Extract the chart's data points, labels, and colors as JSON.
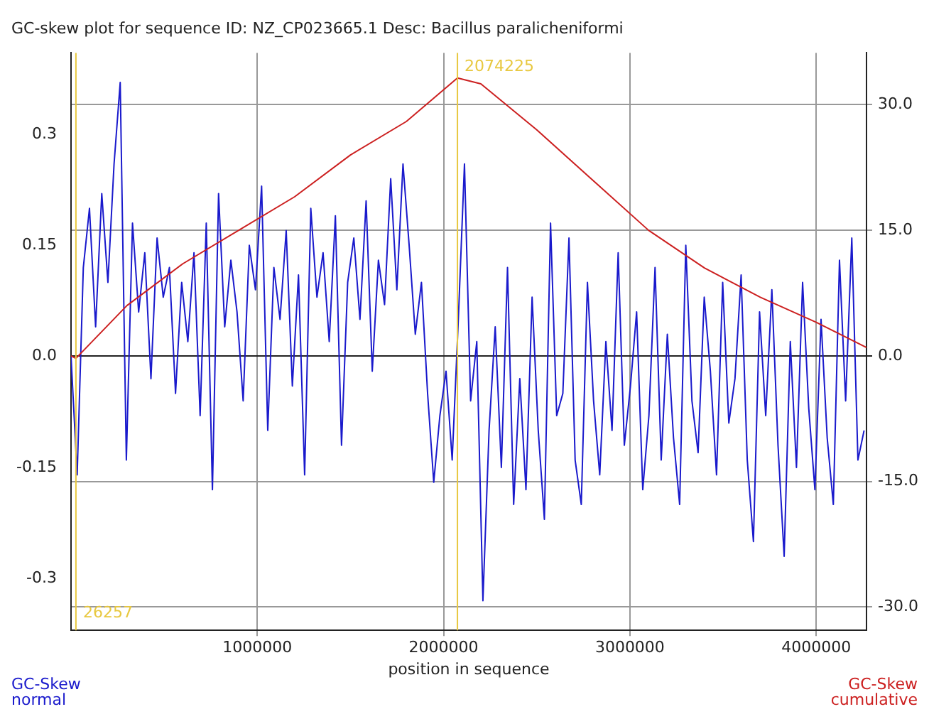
{
  "chart_data": {
    "type": "line",
    "title": "GC-skew plot for sequence ID: NZ_CP023665.1 Desc: Bacillus paralicheniformi",
    "xlabel": "position in sequence",
    "ylabel": "GC-Skew normal",
    "y2label": "GC-Skew cumulative",
    "xlim": [
      0,
      4270000
    ],
    "xticks": [
      1000000,
      2000000,
      3000000,
      4000000
    ],
    "ylim": [
      -0.37,
      0.41
    ],
    "yticks": [
      0.3,
      0.15,
      {
        "value": 0,
        "label": "0.0"
      },
      -0.15,
      -0.3
    ],
    "y2lim": [
      -32.8,
      36.2
    ],
    "y2ticks": [
      {
        "value": 30,
        "label": "30.0"
      },
      {
        "value": 15,
        "label": "15.0"
      },
      {
        "value": 0,
        "label": "0.0"
      },
      {
        "value": -15,
        "label": "-15.0"
      },
      {
        "value": -30,
        "label": "-30.0"
      }
    ],
    "grid": true,
    "legend": false,
    "marker": "none",
    "line_style": "solid",
    "ref_lines": [
      {
        "axis": "x",
        "value": 26257,
        "label": "26257",
        "color": "#e8c840"
      },
      {
        "axis": "x",
        "value": 2074225,
        "label": "2074225",
        "color": "#e8c840"
      }
    ],
    "series": [
      {
        "color": "#1a1acc",
        "x": [
          0,
          33000,
          66000,
          99000,
          132000,
          165000,
          198000,
          231000,
          264000,
          297000,
          330000,
          363000,
          396000,
          429000,
          462000,
          495000,
          528000,
          561000,
          594000,
          627000,
          660000,
          693000,
          726000,
          759000,
          792000,
          825000,
          858000,
          891000,
          924000,
          957000,
          990000,
          1023000,
          1056000,
          1089000,
          1122000,
          1155000,
          1188000,
          1221000,
          1254000,
          1287000,
          1320000,
          1353000,
          1386000,
          1419000,
          1452000,
          1485000,
          1518000,
          1551000,
          1584000,
          1617000,
          1650000,
          1683000,
          1716000,
          1749000,
          1782000,
          1815000,
          1848000,
          1881000,
          1914000,
          1947000,
          1980000,
          2013000,
          2046000,
          2079000,
          2112000,
          2145000,
          2178000,
          2211000,
          2244000,
          2277000,
          2310000,
          2343000,
          2376000,
          2409000,
          2442000,
          2475000,
          2508000,
          2541000,
          2574000,
          2607000,
          2640000,
          2673000,
          2706000,
          2739000,
          2772000,
          2805000,
          2838000,
          2871000,
          2904000,
          2937000,
          2970000,
          3003000,
          3036000,
          3069000,
          3102000,
          3135000,
          3168000,
          3201000,
          3234000,
          3267000,
          3300000,
          3333000,
          3366000,
          3399000,
          3432000,
          3465000,
          3498000,
          3531000,
          3564000,
          3597000,
          3630000,
          3663000,
          3696000,
          3729000,
          3762000,
          3795000,
          3828000,
          3861000,
          3894000,
          3927000,
          3960000,
          3993000,
          4026000,
          4059000,
          4092000,
          4125000,
          4158000,
          4191000,
          4224000,
          4257000
        ],
        "values": [
          0.0,
          -0.16,
          0.12,
          0.2,
          0.04,
          0.22,
          0.1,
          0.26,
          0.37,
          -0.14,
          0.18,
          0.06,
          0.14,
          -0.03,
          0.16,
          0.08,
          0.12,
          -0.05,
          0.1,
          0.02,
          0.14,
          -0.08,
          0.18,
          -0.18,
          0.22,
          0.04,
          0.13,
          0.06,
          -0.06,
          0.15,
          0.09,
          0.23,
          -0.1,
          0.12,
          0.05,
          0.17,
          -0.04,
          0.11,
          -0.16,
          0.2,
          0.08,
          0.14,
          0.02,
          0.19,
          -0.12,
          0.1,
          0.16,
          0.05,
          0.21,
          -0.02,
          0.13,
          0.07,
          0.24,
          0.09,
          0.26,
          0.15,
          0.03,
          0.1,
          -0.05,
          -0.17,
          -0.08,
          -0.02,
          -0.14,
          0.05,
          0.26,
          -0.06,
          0.02,
          -0.33,
          -0.1,
          0.04,
          -0.15,
          0.12,
          -0.2,
          -0.03,
          -0.18,
          0.08,
          -0.1,
          -0.22,
          0.18,
          -0.08,
          -0.05,
          0.16,
          -0.14,
          -0.2,
          0.1,
          -0.06,
          -0.16,
          0.02,
          -0.1,
          0.14,
          -0.12,
          -0.04,
          0.06,
          -0.18,
          -0.08,
          0.12,
          -0.14,
          0.03,
          -0.11,
          -0.2,
          0.15,
          -0.06,
          -0.13,
          0.08,
          -0.02,
          -0.16,
          0.1,
          -0.09,
          -0.03,
          0.11,
          -0.14,
          -0.25,
          0.06,
          -0.08,
          0.09,
          -0.12,
          -0.27,
          0.02,
          -0.15,
          0.1,
          -0.07,
          -0.18,
          0.05,
          -0.11,
          -0.2,
          0.13,
          -0.06,
          0.16,
          -0.14,
          -0.1
        ]
      },
      {
        "color": "#cc2020",
        "axis": "y2",
        "x": [
          0,
          26257,
          300000,
          600000,
          900000,
          1200000,
          1500000,
          1800000,
          2074225,
          2200000,
          2500000,
          2800000,
          3100000,
          3400000,
          3700000,
          4000000,
          4270000
        ],
        "values": [
          0,
          -0.3,
          6,
          11,
          15,
          19,
          24,
          28,
          33.2,
          32.5,
          27,
          21,
          15,
          10.5,
          7,
          4,
          1
        ]
      }
    ]
  }
}
